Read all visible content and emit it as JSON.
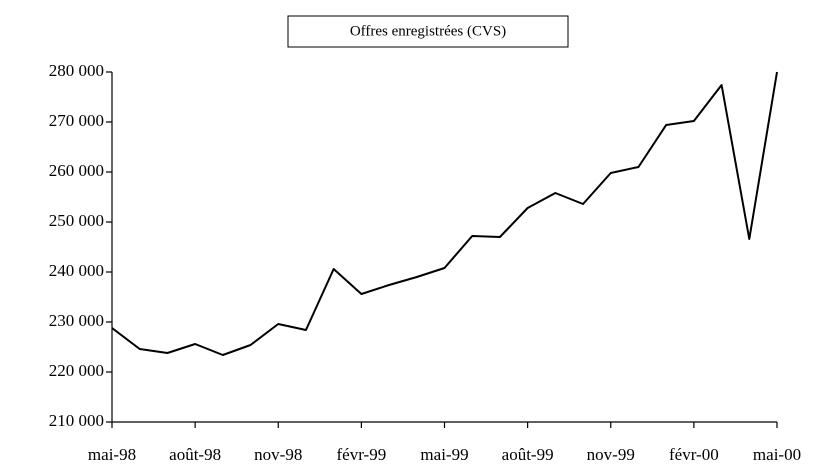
{
  "chart_data": {
    "type": "line",
    "title": "Offres enregistrées (CVS)",
    "categories": [
      "mai-98",
      null,
      null,
      "août-98",
      null,
      null,
      "nov-98",
      null,
      null,
      "févr-99",
      null,
      null,
      "mai-99",
      null,
      null,
      "août-99",
      null,
      null,
      "nov-99",
      null,
      null,
      "févr-00",
      null,
      null,
      "mai-00"
    ],
    "series": [
      {
        "name": "Offres enregistrées (CVS)",
        "color": "#000000",
        "values": [
          228800,
          224600,
          223800,
          225600,
          223400,
          225400,
          229600,
          228400,
          240600,
          235600,
          237400,
          239000,
          240800,
          247200,
          247000,
          252800,
          255800,
          253600,
          259800,
          261000,
          269400,
          270200,
          277400,
          246600,
          280000
        ]
      }
    ],
    "ylim": [
      210000,
      280000
    ],
    "yticks": [
      {
        "value": 210000,
        "label": "210 000"
      },
      {
        "value": 220000,
        "label": "220 000"
      },
      {
        "value": 230000,
        "label": "230 000"
      },
      {
        "value": 240000,
        "label": "240 000"
      },
      {
        "value": 250000,
        "label": "250 000"
      },
      {
        "value": 260000,
        "label": "260 000"
      },
      {
        "value": 270000,
        "label": "270 000"
      },
      {
        "value": 280000,
        "label": "280 000"
      }
    ],
    "grid": false
  }
}
